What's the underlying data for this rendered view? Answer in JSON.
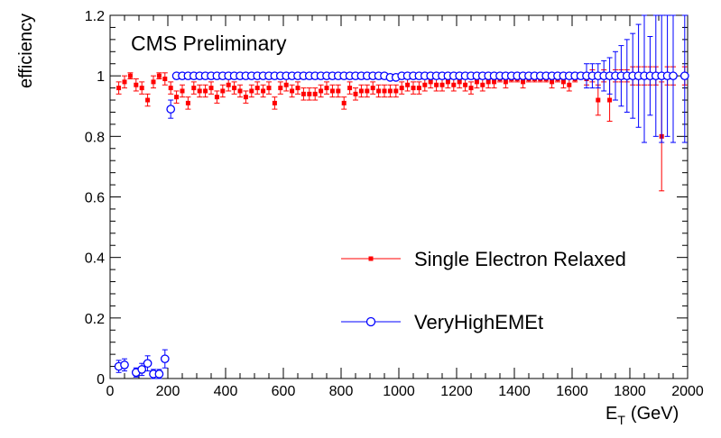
{
  "chart_data": {
    "type": "scatter",
    "title": "CMS Preliminary",
    "xlabel": "E",
    "xlabel_sub": "T",
    "xlabel_unit": "(GeV)",
    "ylabel": "efficiency",
    "xlim": [
      0,
      2000
    ],
    "ylim": [
      0,
      1.2
    ],
    "xticks": [
      0,
      200,
      400,
      600,
      800,
      1000,
      1200,
      1400,
      1600,
      1800,
      2000
    ],
    "yticks": [
      0,
      0.2,
      0.4,
      0.6,
      0.8,
      1,
      1.2
    ],
    "ytick_labels": [
      "0",
      "0.2",
      "0.4",
      "0.6",
      "0.8",
      "1",
      "1.2"
    ],
    "grid": false,
    "legend_placement": "bottom-right",
    "series": [
      {
        "name": "Single Electron Relaxed",
        "color": "#ff0000",
        "marker": "filled-square",
        "points": [
          [
            30,
            0.96,
            0.02
          ],
          [
            50,
            0.98,
            0.02
          ],
          [
            70,
            1.0,
            0.01
          ],
          [
            90,
            0.97,
            0.02
          ],
          [
            110,
            0.96,
            0.02
          ],
          [
            130,
            0.92,
            0.02
          ],
          [
            150,
            0.98,
            0.02
          ],
          [
            170,
            1.0,
            0.01
          ],
          [
            190,
            0.99,
            0.02
          ],
          [
            210,
            0.96,
            0.02
          ],
          [
            230,
            0.93,
            0.02
          ],
          [
            250,
            0.95,
            0.02
          ],
          [
            270,
            0.91,
            0.02
          ],
          [
            290,
            0.96,
            0.02
          ],
          [
            310,
            0.95,
            0.02
          ],
          [
            330,
            0.95,
            0.02
          ],
          [
            350,
            0.96,
            0.02
          ],
          [
            370,
            0.93,
            0.02
          ],
          [
            390,
            0.95,
            0.02
          ],
          [
            410,
            0.97,
            0.02
          ],
          [
            430,
            0.96,
            0.02
          ],
          [
            450,
            0.95,
            0.02
          ],
          [
            470,
            0.93,
            0.02
          ],
          [
            490,
            0.95,
            0.02
          ],
          [
            510,
            0.96,
            0.02
          ],
          [
            530,
            0.95,
            0.02
          ],
          [
            550,
            0.96,
            0.02
          ],
          [
            570,
            0.91,
            0.02
          ],
          [
            590,
            0.96,
            0.02
          ],
          [
            610,
            0.97,
            0.02
          ],
          [
            630,
            0.95,
            0.02
          ],
          [
            650,
            0.96,
            0.02
          ],
          [
            670,
            0.94,
            0.02
          ],
          [
            690,
            0.94,
            0.02
          ],
          [
            710,
            0.94,
            0.02
          ],
          [
            730,
            0.95,
            0.02
          ],
          [
            750,
            0.96,
            0.02
          ],
          [
            770,
            0.95,
            0.02
          ],
          [
            790,
            0.95,
            0.02
          ],
          [
            810,
            0.91,
            0.02
          ],
          [
            830,
            0.96,
            0.02
          ],
          [
            850,
            0.94,
            0.02
          ],
          [
            870,
            0.95,
            0.02
          ],
          [
            890,
            0.95,
            0.02
          ],
          [
            910,
            0.96,
            0.02
          ],
          [
            930,
            0.95,
            0.02
          ],
          [
            950,
            0.95,
            0.02
          ],
          [
            970,
            0.95,
            0.02
          ],
          [
            990,
            0.95,
            0.02
          ],
          [
            1010,
            0.96,
            0.02
          ],
          [
            1030,
            0.97,
            0.02
          ],
          [
            1050,
            0.96,
            0.02
          ],
          [
            1070,
            0.96,
            0.02
          ],
          [
            1090,
            0.97,
            0.02
          ],
          [
            1110,
            0.98,
            0.02
          ],
          [
            1130,
            0.97,
            0.02
          ],
          [
            1150,
            0.97,
            0.02
          ],
          [
            1170,
            0.98,
            0.02
          ],
          [
            1190,
            0.97,
            0.02
          ],
          [
            1210,
            0.98,
            0.02
          ],
          [
            1230,
            0.97,
            0.02
          ],
          [
            1250,
            0.96,
            0.02
          ],
          [
            1270,
            0.98,
            0.02
          ],
          [
            1290,
            0.97,
            0.02
          ],
          [
            1310,
            0.98,
            0.02
          ],
          [
            1330,
            0.98,
            0.02
          ],
          [
            1350,
            0.99,
            0.01
          ],
          [
            1370,
            0.98,
            0.02
          ],
          [
            1390,
            0.99,
            0.01
          ],
          [
            1410,
            0.99,
            0.01
          ],
          [
            1430,
            0.98,
            0.02
          ],
          [
            1450,
            0.99,
            0.01
          ],
          [
            1470,
            0.99,
            0.01
          ],
          [
            1490,
            0.99,
            0.01
          ],
          [
            1510,
            0.99,
            0.01
          ],
          [
            1530,
            0.98,
            0.02
          ],
          [
            1550,
            0.99,
            0.01
          ],
          [
            1570,
            0.98,
            0.02
          ],
          [
            1590,
            0.97,
            0.02
          ],
          [
            1610,
            0.99,
            0.01
          ],
          [
            1630,
            1.0,
            0.01
          ],
          [
            1650,
            0.99,
            0.02
          ],
          [
            1670,
            1.0,
            0.02
          ],
          [
            1690,
            0.92,
            0.05
          ],
          [
            1710,
            1.0,
            0.02
          ],
          [
            1730,
            0.92,
            0.07
          ],
          [
            1750,
            1.0,
            0.02
          ],
          [
            1770,
            1.0,
            0.02
          ],
          [
            1790,
            1.0,
            0.02
          ],
          [
            1810,
            1.0,
            0.03
          ],
          [
            1830,
            1.0,
            0.03
          ],
          [
            1850,
            1.0,
            0.03
          ],
          [
            1870,
            1.0,
            0.03
          ],
          [
            1890,
            1.0,
            0.03
          ],
          [
            1910,
            0.8,
            0.18
          ],
          [
            1930,
            1.0,
            0.03
          ],
          [
            1950,
            1.0,
            0.03
          ],
          [
            1990,
            1.0,
            0.03
          ]
        ]
      },
      {
        "name": "VeryHighEMEt",
        "color": "#0000ff",
        "marker": "open-circle",
        "points": [
          [
            30,
            0.04,
            0.02
          ],
          [
            50,
            0.045,
            0.02
          ],
          [
            90,
            0.02,
            0.015
          ],
          [
            110,
            0.03,
            0.02
          ],
          [
            130,
            0.05,
            0.025
          ],
          [
            150,
            0.015,
            0.015
          ],
          [
            170,
            0.015,
            0.015
          ],
          [
            190,
            0.065,
            0.03
          ],
          [
            210,
            0.89,
            0.03
          ],
          [
            230,
            1.0,
            0.005
          ],
          [
            250,
            1.0,
            0.005
          ],
          [
            270,
            1.0,
            0.005
          ],
          [
            290,
            1.0,
            0.005
          ],
          [
            310,
            1.0,
            0.005
          ],
          [
            330,
            1.0,
            0.005
          ],
          [
            350,
            1.0,
            0.005
          ],
          [
            370,
            1.0,
            0.005
          ],
          [
            390,
            1.0,
            0.005
          ],
          [
            410,
            1.0,
            0.005
          ],
          [
            430,
            1.0,
            0.005
          ],
          [
            450,
            1.0,
            0.005
          ],
          [
            470,
            1.0,
            0.005
          ],
          [
            490,
            1.0,
            0.005
          ],
          [
            510,
            1.0,
            0.005
          ],
          [
            530,
            1.0,
            0.005
          ],
          [
            550,
            1.0,
            0.005
          ],
          [
            570,
            1.0,
            0.005
          ],
          [
            590,
            1.0,
            0.005
          ],
          [
            610,
            1.0,
            0.005
          ],
          [
            630,
            1.0,
            0.005
          ],
          [
            650,
            1.0,
            0.005
          ],
          [
            670,
            1.0,
            0.005
          ],
          [
            690,
            1.0,
            0.005
          ],
          [
            710,
            1.0,
            0.005
          ],
          [
            730,
            1.0,
            0.005
          ],
          [
            750,
            1.0,
            0.005
          ],
          [
            770,
            1.0,
            0.005
          ],
          [
            790,
            1.0,
            0.005
          ],
          [
            810,
            1.0,
            0.005
          ],
          [
            830,
            1.0,
            0.005
          ],
          [
            850,
            1.0,
            0.005
          ],
          [
            870,
            1.0,
            0.005
          ],
          [
            890,
            1.0,
            0.005
          ],
          [
            910,
            1.0,
            0.005
          ],
          [
            930,
            1.0,
            0.005
          ],
          [
            950,
            1.0,
            0.005
          ],
          [
            970,
            0.995,
            0.005
          ],
          [
            990,
            0.995,
            0.005
          ],
          [
            1010,
            1.0,
            0.005
          ],
          [
            1030,
            1.0,
            0.005
          ],
          [
            1050,
            1.0,
            0.005
          ],
          [
            1070,
            1.0,
            0.005
          ],
          [
            1090,
            1.0,
            0.005
          ],
          [
            1110,
            1.0,
            0.005
          ],
          [
            1130,
            1.0,
            0.005
          ],
          [
            1150,
            1.0,
            0.005
          ],
          [
            1170,
            1.0,
            0.005
          ],
          [
            1190,
            1.0,
            0.005
          ],
          [
            1210,
            1.0,
            0.005
          ],
          [
            1230,
            1.0,
            0.005
          ],
          [
            1250,
            1.0,
            0.005
          ],
          [
            1270,
            1.0,
            0.005
          ],
          [
            1290,
            1.0,
            0.005
          ],
          [
            1310,
            1.0,
            0.005
          ],
          [
            1330,
            1.0,
            0.005
          ],
          [
            1350,
            1.0,
            0.005
          ],
          [
            1370,
            1.0,
            0.005
          ],
          [
            1390,
            1.0,
            0.005
          ],
          [
            1410,
            1.0,
            0.005
          ],
          [
            1430,
            1.0,
            0.005
          ],
          [
            1450,
            1.0,
            0.005
          ],
          [
            1470,
            1.0,
            0.005
          ],
          [
            1490,
            1.0,
            0.005
          ],
          [
            1510,
            1.0,
            0.005
          ],
          [
            1530,
            1.0,
            0.005
          ],
          [
            1550,
            1.0,
            0.005
          ],
          [
            1570,
            1.0,
            0.005
          ],
          [
            1590,
            1.0,
            0.005
          ],
          [
            1610,
            1.0,
            0.005
          ],
          [
            1630,
            1.0,
            0.01
          ],
          [
            1650,
            1.0,
            0.04
          ],
          [
            1670,
            1.0,
            0.04
          ],
          [
            1690,
            1.0,
            0.04
          ],
          [
            1710,
            1.0,
            0.05
          ],
          [
            1730,
            1.0,
            0.06
          ],
          [
            1750,
            1.0,
            0.08
          ],
          [
            1770,
            1.0,
            0.1
          ],
          [
            1790,
            1.0,
            0.12
          ],
          [
            1810,
            1.0,
            0.14
          ],
          [
            1830,
            1.0,
            0.17
          ],
          [
            1850,
            1.0,
            0.22
          ],
          [
            1870,
            1.0,
            0.13
          ],
          [
            1890,
            1.0,
            0.2
          ],
          [
            1910,
            1.0,
            0.22
          ],
          [
            1930,
            1.0,
            0.2
          ],
          [
            1950,
            1.0,
            0.22
          ],
          [
            1990,
            1.0,
            0.22
          ]
        ]
      }
    ]
  }
}
